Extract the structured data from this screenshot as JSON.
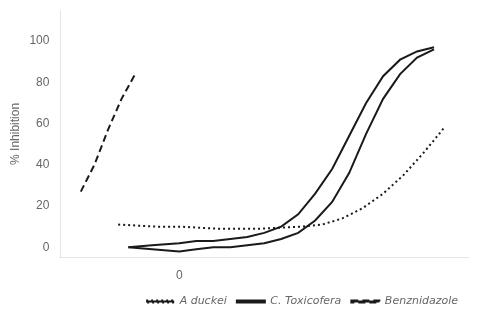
{
  "chart_data": {
    "type": "line",
    "ylabel": "% Inhibition",
    "color": "#1a1a1a",
    "grid": false,
    "legend": "lower right",
    "xlim": [
      -3.5,
      8.5
    ],
    "xticks": [
      {
        "value": -3,
        "label": null
      },
      {
        "value": -2,
        "label": null
      },
      {
        "value": -1,
        "label": null
      },
      0,
      {
        "value": 1,
        "label": null
      },
      {
        "value": 2,
        "label": null
      },
      {
        "value": 3,
        "label": null
      },
      {
        "value": 4,
        "label": null
      },
      {
        "value": 5,
        "label": null
      },
      {
        "value": 6,
        "label": null
      },
      {
        "value": 7,
        "label": null
      },
      {
        "value": 8,
        "label": null
      }
    ],
    "ylim": [
      -5,
      115
    ],
    "yticks": [
      0,
      20,
      40,
      60,
      80,
      100
    ],
    "series": [
      {
        "name": "A duckei",
        "line_style": "dotted",
        "x": [
          -1.8,
          -1.2,
          -0.6,
          0.0,
          0.6,
          1.2,
          1.8,
          2.4,
          3.0,
          3.6,
          4.2,
          4.8,
          5.4,
          6.0,
          6.6,
          7.2,
          7.8
        ],
        "values": [
          11,
          10.5,
          10,
          10,
          9.5,
          9,
          9,
          9,
          9.5,
          10,
          11,
          14,
          19,
          26,
          35,
          46,
          58
        ]
      },
      {
        "name": "C. Toxicofera",
        "line_style": "solid",
        "x": [
          -1.5,
          -0.8,
          0.0,
          0.5,
          1.0,
          1.5,
          2.0,
          2.5,
          3.0,
          3.5,
          4.0,
          4.5,
          5.0,
          5.5,
          6.0,
          6.5,
          7.0,
          7.5
        ],
        "values": [
          0,
          -1,
          -2,
          -1,
          0,
          0,
          1,
          2,
          4,
          7,
          13,
          22,
          36,
          55,
          72,
          84,
          92,
          96
        ]
      },
      {
        "name": "C. Toxicofera",
        "line_style": "solid",
        "x": [
          -1.5,
          -0.8,
          0.0,
          0.5,
          1.0,
          1.5,
          2.0,
          2.5,
          3.0,
          3.5,
          4.0,
          4.5,
          5.0,
          5.5,
          6.0,
          6.5,
          7.0,
          7.5
        ],
        "values": [
          0,
          1,
          2,
          3,
          3,
          4,
          5,
          7,
          10,
          16,
          26,
          38,
          54,
          70,
          83,
          91,
          95,
          97
        ]
      },
      {
        "name": "Benznidazole",
        "line_style": "dashed",
        "x": [
          -2.9,
          -2.5,
          -2.1,
          -1.7,
          -1.3
        ],
        "values": [
          27,
          40,
          57,
          72,
          84
        ]
      }
    ]
  }
}
